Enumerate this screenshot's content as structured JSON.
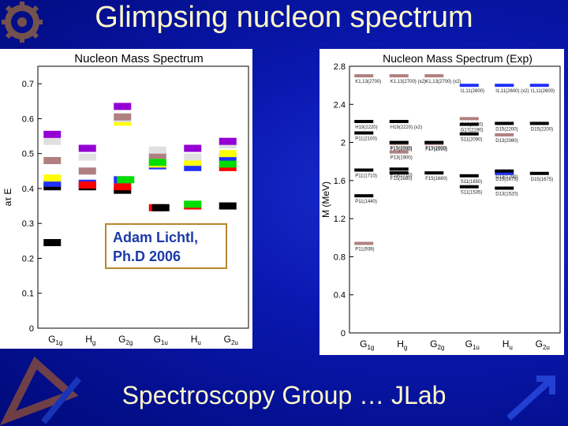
{
  "slide": {
    "title": "Glimpsing nucleon spectrum",
    "footer": "Spectroscopy Group … JLab",
    "callout": {
      "line1": "Adam Lichtl,",
      "line2": "Ph.D 2006"
    },
    "colors": {
      "background": "#0a18b0",
      "title_text": "#fff8c8",
      "callout_text": "#1b3aa8",
      "callout_border": "#b8862c"
    }
  },
  "chart_data": [
    {
      "type": "scatter",
      "title": "Nucleon Mass Spectrum",
      "ylabel": "aτ E",
      "xlabel": "",
      "ylim": [
        0,
        0.75
      ],
      "yticks": [
        "0",
        "0.1",
        "0.2",
        "0.3",
        "0.4",
        "0.5",
        "0.6",
        "0.7"
      ],
      "categories": [
        "G1g",
        "Hg",
        "G2g",
        "G1u",
        "Hu",
        "G2u"
      ],
      "category_labels": [
        {
          "main": "G",
          "sub": "1g"
        },
        {
          "main": "H",
          "sub": "g"
        },
        {
          "main": "G",
          "sub": "2g"
        },
        {
          "main": "G",
          "sub": "1u"
        },
        {
          "main": "H",
          "sub": "u"
        },
        {
          "main": "G",
          "sub": "2u"
        }
      ],
      "levels": [
        {
          "cat": 0,
          "y": 0.245,
          "color": "#000000"
        },
        {
          "cat": 0,
          "y": 0.405,
          "color": "#000000"
        },
        {
          "cat": 0,
          "y": 0.415,
          "color": "#2030ff"
        },
        {
          "cat": 0,
          "y": 0.43,
          "color": "#ffff00"
        },
        {
          "cat": 0,
          "y": 0.48,
          "color": "#b08080"
        },
        {
          "cat": 0,
          "y": 0.535,
          "color": "#e0e0e0"
        },
        {
          "cat": 0,
          "y": 0.555,
          "color": "#9400d3"
        },
        {
          "cat": 1,
          "y": 0.405,
          "color": "#000000"
        },
        {
          "cat": 1,
          "y": 0.415,
          "color": "#2030ff"
        },
        {
          "cat": 1,
          "y": 0.41,
          "color": "#ff0000"
        },
        {
          "cat": 1,
          "y": 0.45,
          "color": "#b08080"
        },
        {
          "cat": 1,
          "y": 0.49,
          "color": "#e0e0e0"
        },
        {
          "cat": 1,
          "y": 0.515,
          "color": "#9400d3"
        },
        {
          "cat": 2,
          "y": 0.395,
          "color": "#000000"
        },
        {
          "cat": 2,
          "y": 0.405,
          "color": "#ff0000"
        },
        {
          "cat": 2,
          "y": 0.425,
          "color": "#2030ff"
        },
        {
          "cat": 2,
          "y": 0.425,
          "color": "#00dd00"
        },
        {
          "cat": 2,
          "y": 0.59,
          "color": "#ffff00"
        },
        {
          "cat": 2,
          "y": 0.6,
          "color": "#e0e0e0"
        },
        {
          "cat": 2,
          "y": 0.605,
          "color": "#b08080"
        },
        {
          "cat": 2,
          "y": 0.635,
          "color": "#9400d3"
        },
        {
          "cat": 3,
          "y": 0.345,
          "color": "#ff0000"
        },
        {
          "cat": 3,
          "y": 0.345,
          "color": "#000000"
        },
        {
          "cat": 3,
          "y": 0.465,
          "color": "#2030ff"
        },
        {
          "cat": 3,
          "y": 0.47,
          "color": "#ffff00"
        },
        {
          "cat": 3,
          "y": 0.475,
          "color": "#00dd00"
        },
        {
          "cat": 3,
          "y": 0.495,
          "color": "#b08080"
        },
        {
          "cat": 3,
          "y": 0.51,
          "color": "#e0e0e0"
        },
        {
          "cat": 4,
          "y": 0.35,
          "color": "#ff0000"
        },
        {
          "cat": 4,
          "y": 0.355,
          "color": "#00dd00"
        },
        {
          "cat": 4,
          "y": 0.46,
          "color": "#2030ff"
        },
        {
          "cat": 4,
          "y": 0.475,
          "color": "#ffff00"
        },
        {
          "cat": 4,
          "y": 0.49,
          "color": "#e0e0e0"
        },
        {
          "cat": 4,
          "y": 0.515,
          "color": "#9400d3"
        },
        {
          "cat": 5,
          "y": 0.35,
          "color": "#000000"
        },
        {
          "cat": 5,
          "y": 0.46,
          "color": "#ff0000"
        },
        {
          "cat": 5,
          "y": 0.47,
          "color": "#00dd00"
        },
        {
          "cat": 5,
          "y": 0.49,
          "color": "#2030ff"
        },
        {
          "cat": 5,
          "y": 0.5,
          "color": "#ffff00"
        },
        {
          "cat": 5,
          "y": 0.525,
          "color": "#e0e0e0"
        },
        {
          "cat": 5,
          "y": 0.535,
          "color": "#9400d3"
        }
      ]
    },
    {
      "type": "scatter",
      "title": "Nucleon Mass Spectrum (Exp)",
      "ylabel": "M (MeV)",
      "xlabel": "",
      "ylim": [
        0,
        2.8
      ],
      "yticks": [
        "0",
        "0.4",
        "0.8",
        "1.2",
        "1.6",
        "2",
        "2.4",
        "2.8"
      ],
      "categories": [
        "G1g",
        "Hg",
        "G2g",
        "G1u",
        "Hu",
        "G2u"
      ],
      "category_labels": [
        {
          "main": "G",
          "sub": "1g"
        },
        {
          "main": "H",
          "sub": "g"
        },
        {
          "main": "G",
          "sub": "2g"
        },
        {
          "main": "G",
          "sub": "1u"
        },
        {
          "main": "H",
          "sub": "u"
        },
        {
          "main": "G",
          "sub": "2u"
        }
      ],
      "levels": [
        {
          "cat": 0,
          "y": 0.94,
          "color": "#b08080",
          "label": "P11(939)"
        },
        {
          "cat": 0,
          "y": 1.44,
          "color": "#000000",
          "label": "P11(1440)"
        },
        {
          "cat": 0,
          "y": 1.71,
          "color": "#000000",
          "label": "P11(1710)"
        },
        {
          "cat": 0,
          "y": 2.1,
          "color": "#000000",
          "label": "P11(2100)"
        },
        {
          "cat": 0,
          "y": 2.22,
          "color": "#000000",
          "label": "H19(2220)"
        },
        {
          "cat": 0,
          "y": 2.7,
          "color": "#b08080",
          "label": "K1,13(2700)"
        },
        {
          "cat": 1,
          "y": 1.68,
          "color": "#000000",
          "label": "F15(1680)"
        },
        {
          "cat": 1,
          "y": 1.72,
          "color": "#000000",
          "label": "P13(1720)"
        },
        {
          "cat": 1,
          "y": 1.9,
          "color": "#b08080",
          "label": "P13(1900)"
        },
        {
          "cat": 1,
          "y": 1.99,
          "color": "#b08080",
          "label": "F17(1990)"
        },
        {
          "cat": 1,
          "y": 2.0,
          "color": "#000000",
          "label": "F15(2000)"
        },
        {
          "cat": 1,
          "y": 2.22,
          "color": "#000000",
          "label": "H19(2220) (x2)"
        },
        {
          "cat": 1,
          "y": 2.7,
          "color": "#b08080",
          "label": "K1,13(2700) (x2)"
        },
        {
          "cat": 2,
          "y": 1.68,
          "color": "#000000",
          "label": "F15(1680)"
        },
        {
          "cat": 2,
          "y": 1.99,
          "color": "#b08080",
          "label": "F17(1990)"
        },
        {
          "cat": 2,
          "y": 2.0,
          "color": "#000000",
          "label": "F15(2000)"
        },
        {
          "cat": 2,
          "y": 2.7,
          "color": "#b08080",
          "label": "K1,13(2700) (x2)"
        },
        {
          "cat": 3,
          "y": 1.535,
          "color": "#000000",
          "label": "S11(1535)"
        },
        {
          "cat": 3,
          "y": 1.65,
          "color": "#000000",
          "label": "S11(1650)"
        },
        {
          "cat": 3,
          "y": 2.09,
          "color": "#000000",
          "label": "S11(2090)"
        },
        {
          "cat": 3,
          "y": 2.19,
          "color": "#000000",
          "label": "G17(2190)"
        },
        {
          "cat": 3,
          "y": 2.25,
          "color": "#b08080",
          "label": "G19(2250)"
        },
        {
          "cat": 3,
          "y": 2.6,
          "color": "#2030ff",
          "label": "I1,11(2600)"
        },
        {
          "cat": 4,
          "y": 1.52,
          "color": "#000000",
          "label": "D13(1520)"
        },
        {
          "cat": 4,
          "y": 1.675,
          "color": "#2030ff",
          "label": "D15(1675)"
        },
        {
          "cat": 4,
          "y": 1.7,
          "color": "#000000",
          "label": "D13(1700)"
        },
        {
          "cat": 4,
          "y": 2.08,
          "color": "#b08080",
          "label": "D13(2080)"
        },
        {
          "cat": 4,
          "y": 2.2,
          "color": "#000000",
          "label": "D15(2200)"
        },
        {
          "cat": 4,
          "y": 2.6,
          "color": "#2030ff",
          "label": "I1,11(2600) (x2)"
        },
        {
          "cat": 5,
          "y": 1.675,
          "color": "#000000",
          "label": "D15(1675)"
        },
        {
          "cat": 5,
          "y": 2.2,
          "color": "#000000",
          "label": "D15(2200)"
        },
        {
          "cat": 5,
          "y": 2.6,
          "color": "#2030ff",
          "label": "I1,11(2600)"
        }
      ]
    }
  ]
}
